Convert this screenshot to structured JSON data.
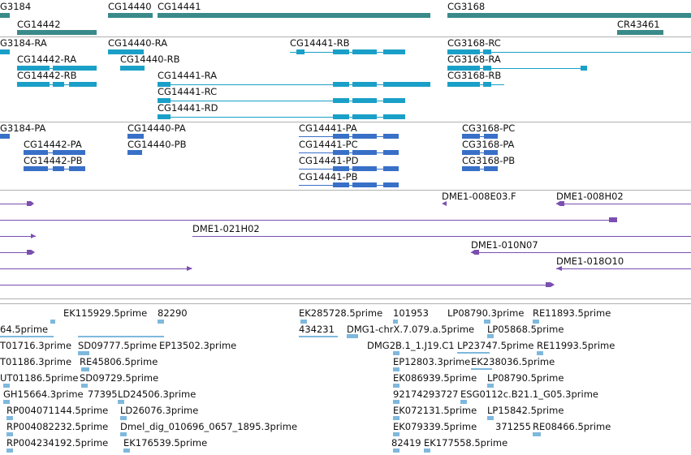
{
  "colors": {
    "gene": "#3a8a8a",
    "mrna": "#1aa0c8",
    "protein": "#3870c8",
    "clone": "#7a4fb0",
    "est": "#7fb8dd",
    "separator": "#b0b0b0"
  },
  "genes": [
    {
      "label": "G3184"
    },
    {
      "label": "CG14440"
    },
    {
      "label": "CG14441"
    },
    {
      "label": "CG3168"
    },
    {
      "label": "CG14442"
    },
    {
      "label": "CR43461"
    }
  ],
  "transcripts": [
    {
      "label": "G3184-RA"
    },
    {
      "label": "CG14440-RA"
    },
    {
      "label": "CG14441-RB"
    },
    {
      "label": "CG3168-RC"
    },
    {
      "label": "CG14442-RA"
    },
    {
      "label": "CG14440-RB"
    },
    {
      "label": "CG3168-RA"
    },
    {
      "label": "CG14442-RB"
    },
    {
      "label": "CG14441-RA"
    },
    {
      "label": "CG3168-RB"
    },
    {
      "label": "CG14441-RC"
    },
    {
      "label": "CG14441-RD"
    }
  ],
  "proteins": [
    {
      "label": "G3184-PA"
    },
    {
      "label": "CG14440-PA"
    },
    {
      "label": "CG14441-PA"
    },
    {
      "label": "CG3168-PC"
    },
    {
      "label": "CG14442-PA"
    },
    {
      "label": "CG14440-PB"
    },
    {
      "label": "CG14441-PC"
    },
    {
      "label": "CG3168-PA"
    },
    {
      "label": "CG14442-PB"
    },
    {
      "label": "CG14441-PD"
    },
    {
      "label": "CG3168-PB"
    },
    {
      "label": "CG14441-PB"
    }
  ],
  "clones": [
    {
      "label": "DME1-008E03.F"
    },
    {
      "label": "DME1-008H02"
    },
    {
      "label": "DME1-021H02"
    },
    {
      "label": "DME1-010N07"
    },
    {
      "label": "DME1-018O10"
    }
  ],
  "ests": [
    {
      "label": "EK115929.5prime"
    },
    {
      "label": "82290"
    },
    {
      "label": "EK285728.5prime"
    },
    {
      "label": "101953"
    },
    {
      "label": "LP08790.3prime"
    },
    {
      "label": "RE11893.5prime"
    },
    {
      "label": "64.5prime"
    },
    {
      "label": "434231"
    },
    {
      "label": "DMG1-chrX.7.079.a.5prime"
    },
    {
      "label": "LP05868.5prime"
    },
    {
      "label": "T01716.3prime"
    },
    {
      "label": "SD09777.5prime"
    },
    {
      "label": "EP13502.3prime"
    },
    {
      "label": "DMG2B.1_1.J19.C1"
    },
    {
      "label": "LP23747.5prime"
    },
    {
      "label": "RE11993.5prime"
    },
    {
      "label": "T01186.3prime"
    },
    {
      "label": "RE45806.5prime"
    },
    {
      "label": "EP12803.3prime"
    },
    {
      "label": "EK238036.5prime"
    },
    {
      "label": "UT01186.5prime"
    },
    {
      "label": "SD09729.5prime"
    },
    {
      "label": "EK086939.5prime"
    },
    {
      "label": "LP08790.5prime"
    },
    {
      "label": "GH15664.3prime"
    },
    {
      "label": "77395"
    },
    {
      "label": "LD24506.3prime"
    },
    {
      "label": "92174293727"
    },
    {
      "label": "ESG0112c.B21.1_G05.3prime"
    },
    {
      "label": "RP004071144.5prime"
    },
    {
      "label": "LD26076.3prime"
    },
    {
      "label": "EK072131.5prime"
    },
    {
      "label": "LP15842.5prime"
    },
    {
      "label": "RP004082232.5prime"
    },
    {
      "label": "Dmel_dig_010696_0657_1895.3prime"
    },
    {
      "label": "EK079339.5prime"
    },
    {
      "label": "371255"
    },
    {
      "label": "RE08466.5prime"
    },
    {
      "label": "RP004234192.5prime"
    },
    {
      "label": "EK176539.5prime"
    },
    {
      "label": "82419"
    },
    {
      "label": "EK177558.5prime"
    }
  ]
}
